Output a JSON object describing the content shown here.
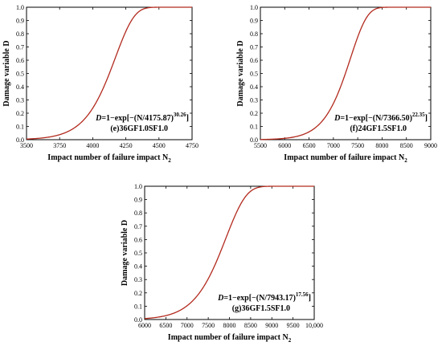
{
  "chart_data": [
    {
      "type": "line",
      "panel_label": "(e)36GF1.0SF1.0",
      "equation": {
        "prefix": "D",
        "body": "=1−exp[−(N/4175.87)",
        "exponent": "30.26",
        "suffix": "]"
      },
      "xlabel": "Impact number of failure impact N",
      "xlabel_subscript": "2",
      "ylabel": "Damage variable D",
      "xlim": [
        3500,
        4750
      ],
      "ylim": [
        0.0,
        1.0
      ],
      "xticks": [
        "3500",
        "3750",
        "4000",
        "4250",
        "4500",
        "4750"
      ],
      "yticks": [
        "0.0",
        "0.1",
        "0.2",
        "0.3",
        "0.4",
        "0.5",
        "0.6",
        "0.7",
        "0.8",
        "0.9",
        "1.0"
      ],
      "series": [
        {
          "scale": 4175.87,
          "shape": 30.26,
          "color": "#b22a1e"
        }
      ]
    },
    {
      "type": "line",
      "panel_label": "(f)24GF1.5SF1.0",
      "equation": {
        "prefix": "D",
        "body": "=1−exp[−(N/7366.50)",
        "exponent": "22.35",
        "suffix": "]"
      },
      "xlabel": "Impact number of failure impact N",
      "xlabel_subscript": "2",
      "ylabel": "Damage variable D",
      "xlim": [
        5500,
        9000
      ],
      "ylim": [
        0.0,
        1.0
      ],
      "xticks": [
        "5500",
        "6000",
        "6500",
        "7000",
        "7500",
        "8000",
        "8500",
        "9000"
      ],
      "yticks": [
        "0.0",
        "0.1",
        "0.2",
        "0.3",
        "0.4",
        "0.5",
        "0.6",
        "0.7",
        "0.8",
        "0.9",
        "1.0"
      ],
      "series": [
        {
          "scale": 7366.5,
          "shape": 22.35,
          "color": "#b22a1e"
        }
      ]
    },
    {
      "type": "line",
      "panel_label": "(g)36GF1.5SF1.0",
      "equation": {
        "prefix": "D",
        "body": "=1−exp[−(N/7943.17)",
        "exponent": "17.56",
        "suffix": "]"
      },
      "xlabel": "Impact number of failure impact N",
      "xlabel_subscript": "2",
      "ylabel": "Damage variable D",
      "xlim": [
        6000,
        10000
      ],
      "ylim": [
        0.0,
        1.0
      ],
      "xticks": [
        "6000",
        "6500",
        "7000",
        "7500",
        "8000",
        "8500",
        "9000",
        "9500",
        "10,000"
      ],
      "yticks": [
        "0.0",
        "0.1",
        "0.2",
        "0.3",
        "0.4",
        "0.5",
        "0.6",
        "0.7",
        "0.8",
        "0.9",
        "1.0"
      ],
      "series": [
        {
          "scale": 7943.17,
          "shape": 17.56,
          "color": "#b22a1e"
        }
      ]
    }
  ]
}
